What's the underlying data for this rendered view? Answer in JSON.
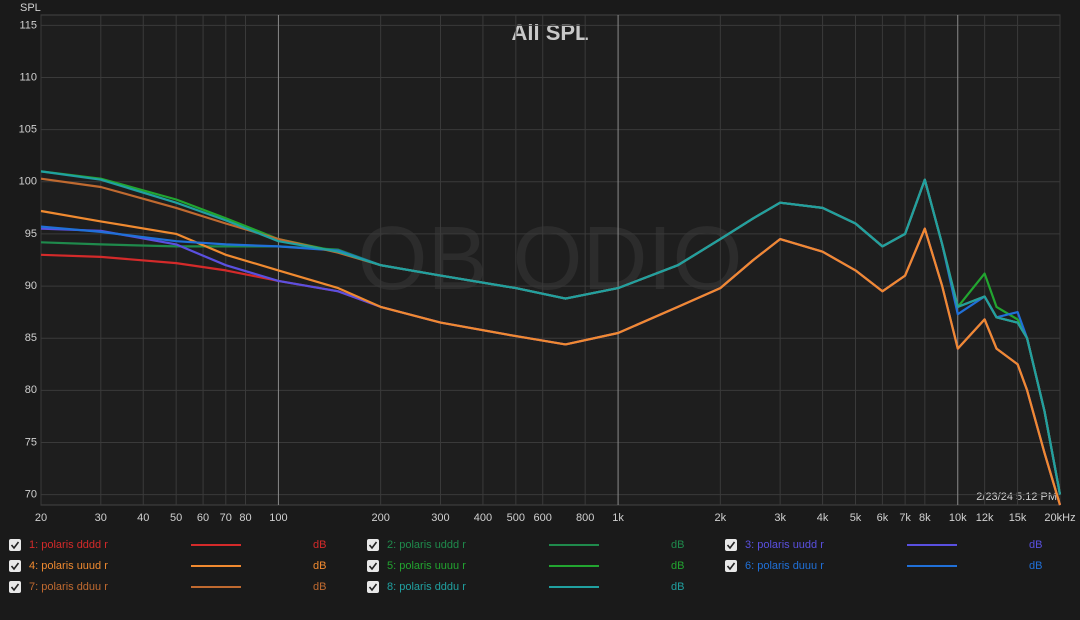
{
  "chart_data": {
    "type": "line",
    "title": "All SPL",
    "y_label": "SPL",
    "watermark": "OB ODIO",
    "timestamp": "2/23/24 5:12 PM",
    "xscale": "log",
    "grid": true,
    "x": [
      20,
      30,
      50,
      70,
      100,
      150,
      200,
      300,
      500,
      700,
      1000,
      1500,
      2000,
      2500,
      3000,
      4000,
      5000,
      6000,
      7000,
      8000,
      9000,
      10000,
      12000,
      13000,
      15000,
      16000,
      18000,
      20000
    ],
    "xlim": [
      20,
      20000
    ],
    "ylim": [
      69,
      116
    ],
    "xticks": [
      20,
      30,
      40,
      50,
      60,
      70,
      80,
      100,
      200,
      300,
      400,
      500,
      600,
      800,
      {
        "value": 1000,
        "label": "1k"
      },
      {
        "value": 2000,
        "label": "2k"
      },
      {
        "value": 3000,
        "label": "3k"
      },
      {
        "value": 4000,
        "label": "4k"
      },
      {
        "value": 5000,
        "label": "5k"
      },
      {
        "value": 6000,
        "label": "6k"
      },
      {
        "value": 7000,
        "label": "7k"
      },
      {
        "value": 8000,
        "label": "8k"
      },
      {
        "value": 10000,
        "label": "10k"
      },
      {
        "value": 12000,
        "label": "12k"
      },
      {
        "value": 15000,
        "label": "15k"
      },
      {
        "value": 20000,
        "label": "20kHz"
      }
    ],
    "yticks": [
      70,
      75,
      80,
      85,
      90,
      95,
      100,
      105,
      110,
      115
    ],
    "series": [
      {
        "name": "1: polaris dddd r",
        "color": "#d42a2a",
        "unit": "dB",
        "values": [
          93,
          92.8,
          92.2,
          91.5,
          90.5,
          89.5,
          88,
          86.5,
          85.2,
          84.4,
          85.5,
          88,
          89.8,
          92.5,
          94.5,
          93.3,
          91.5,
          89.5,
          91,
          95.5,
          90,
          84,
          86.8,
          84,
          82.5,
          80,
          74,
          69
        ]
      },
      {
        "name": "2: polaris uddd r",
        "color": "#1f8a4c",
        "unit": "dB",
        "values": [
          94.2,
          94,
          93.8,
          93.8,
          93.8,
          93.5,
          92,
          91,
          89.8,
          88.8,
          89.8,
          92,
          94.5,
          96.5,
          98,
          97.5,
          96,
          93.8,
          95,
          100.2,
          94,
          88,
          89,
          87,
          86.5,
          85,
          78,
          70
        ]
      },
      {
        "name": "3: polaris uudd r",
        "color": "#5a50e0",
        "unit": "dB",
        "values": [
          95.5,
          95.3,
          94,
          92,
          90.5,
          89.5,
          88,
          86.5,
          85.2,
          84.4,
          85.5,
          88,
          89.8,
          92.5,
          94.5,
          93.3,
          91.5,
          89.5,
          91,
          95.5,
          90,
          84,
          86.8,
          84,
          82.5,
          80,
          74,
          69
        ]
      },
      {
        "name": "4: polaris uuud r",
        "color": "#f08a30",
        "unit": "dB",
        "values": [
          97.2,
          96.2,
          95,
          93,
          91.5,
          89.8,
          88,
          86.5,
          85.2,
          84.4,
          85.5,
          88,
          89.8,
          92.5,
          94.5,
          93.3,
          91.5,
          89.5,
          91,
          95.5,
          90,
          84,
          86.8,
          84,
          82.5,
          80,
          74,
          69
        ]
      },
      {
        "name": "5: polaris uuuu r",
        "color": "#22a530",
        "unit": "dB",
        "values": [
          101,
          100.3,
          98.3,
          96.5,
          94.5,
          93.3,
          92,
          91,
          89.8,
          88.8,
          89.8,
          92,
          94.5,
          96.5,
          98,
          97.5,
          96,
          93.8,
          95,
          100.2,
          94,
          88,
          91.2,
          88,
          86.8,
          85,
          78,
          70
        ]
      },
      {
        "name": "6: polaris duuu r",
        "color": "#2070d8",
        "unit": "dB",
        "values": [
          95.7,
          95.2,
          94.3,
          94,
          93.8,
          93.4,
          92,
          91,
          89.8,
          88.8,
          89.8,
          92,
          94.5,
          96.5,
          98,
          97.5,
          96,
          93.8,
          95,
          100.2,
          94,
          87.3,
          89,
          87,
          87.5,
          85,
          78,
          70
        ]
      },
      {
        "name": "7: polaris dduu r",
        "color": "#c06a30",
        "unit": "dB",
        "values": [
          100.3,
          99.5,
          97.5,
          96,
          94.5,
          93.2,
          92,
          91,
          89.8,
          88.8,
          89.8,
          92,
          94.5,
          96.5,
          98,
          97.5,
          96,
          93.8,
          95,
          100.2,
          94,
          88,
          89,
          87,
          86.5,
          85,
          78,
          70
        ]
      },
      {
        "name": "8: polaris dddu r",
        "color": "#20a0a0",
        "unit": "dB",
        "values": [
          101,
          100.2,
          98,
          96.3,
          94.3,
          93.3,
          92,
          91,
          89.8,
          88.8,
          89.8,
          92,
          94.5,
          96.5,
          98,
          97.5,
          96,
          93.8,
          95,
          100.2,
          94,
          88,
          89,
          87,
          86.5,
          85,
          78,
          70
        ]
      }
    ]
  }
}
